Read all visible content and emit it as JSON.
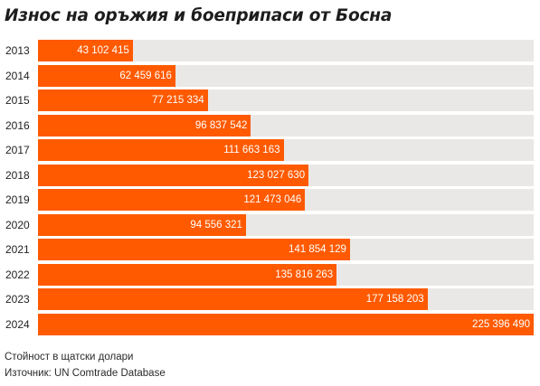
{
  "title": "Износ на оръжия и боеприпаси от Босна",
  "footer": {
    "unit_note": "Стойност в щатски долари",
    "source": "Източник: UN Comtrade Database"
  },
  "colors": {
    "bar": "#ff5a00",
    "track": "#e9e8e6",
    "value_label": "#ffffff"
  },
  "chart_data": {
    "type": "bar",
    "orientation": "horizontal",
    "title": "Износ на оръжия и боеприпаси от Босна",
    "categories": [
      "2013",
      "2014",
      "2015",
      "2016",
      "2017",
      "2018",
      "2019",
      "2020",
      "2021",
      "2022",
      "2023",
      "2024"
    ],
    "values": [
      43102415,
      62459616,
      77215334,
      96837542,
      111663163,
      123027630,
      121473046,
      94556321,
      141854129,
      135816263,
      177158203,
      225396490
    ],
    "value_labels": [
      "43 102 415",
      "62 459 616",
      "77 215 334",
      "96 837 542",
      "111 663 163",
      "123 027 630",
      "121 473 046",
      "94 556 321",
      "141 854 129",
      "135 816 263",
      "177 158 203",
      "225 396 490"
    ],
    "xlim": [
      0,
      225396490
    ],
    "grid": false,
    "legend": false
  }
}
